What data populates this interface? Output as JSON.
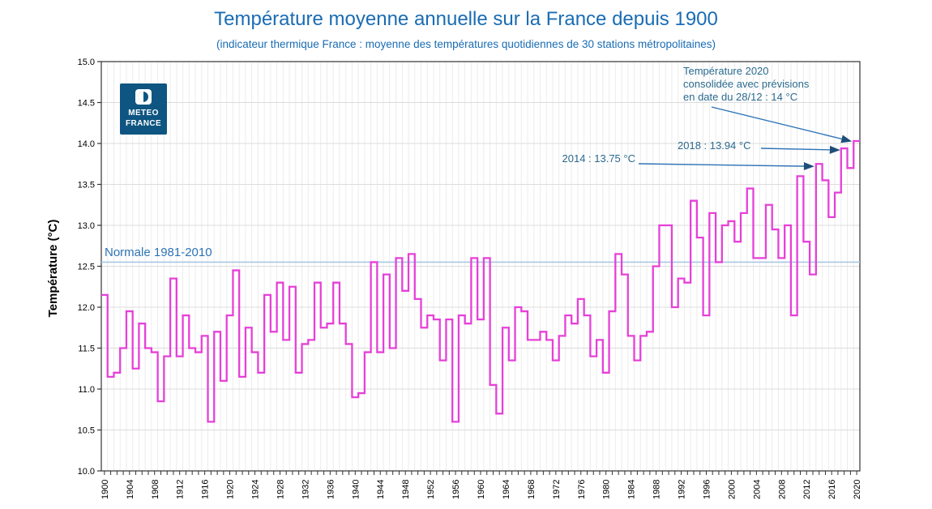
{
  "title": "Température moyenne annuelle sur la France depuis 1900",
  "subtitle": "(indicateur thermique France : moyenne des températures quotidiennes de 30 stations métropolitaines)",
  "logo": {
    "line1": "METEO",
    "line2": "FRANCE"
  },
  "colors": {
    "title": "#1a6cb3",
    "series": "#E640D8",
    "normal_line": "#A9C7E3",
    "normal_label": "#2E74B5",
    "annotation_text": "#2b6a8f",
    "arrow": "#1F4E79",
    "arrow_line": "#2E74B5",
    "logo_bg": "#0E5581",
    "axis": "#333333",
    "grid_v": "#ECECEC",
    "grid_h": "#DCDCDC"
  },
  "chart_data": {
    "type": "line",
    "subtype": "step",
    "ylabel": "Température (°C)",
    "ylim": [
      10.0,
      15.0
    ],
    "ytick_step": 0.5,
    "xtick_label_step": 4,
    "grid": true,
    "x": [
      1900,
      1901,
      1902,
      1903,
      1904,
      1905,
      1906,
      1907,
      1908,
      1909,
      1910,
      1911,
      1912,
      1913,
      1914,
      1915,
      1916,
      1917,
      1918,
      1919,
      1920,
      1921,
      1922,
      1923,
      1924,
      1925,
      1926,
      1927,
      1928,
      1929,
      1930,
      1931,
      1932,
      1933,
      1934,
      1935,
      1936,
      1937,
      1938,
      1939,
      1940,
      1941,
      1942,
      1943,
      1944,
      1945,
      1946,
      1947,
      1948,
      1949,
      1950,
      1951,
      1952,
      1953,
      1954,
      1955,
      1956,
      1957,
      1958,
      1959,
      1960,
      1961,
      1962,
      1963,
      1964,
      1965,
      1966,
      1967,
      1968,
      1969,
      1970,
      1971,
      1972,
      1973,
      1974,
      1975,
      1976,
      1977,
      1978,
      1979,
      1980,
      1981,
      1982,
      1983,
      1984,
      1985,
      1986,
      1987,
      1988,
      1989,
      1990,
      1991,
      1992,
      1993,
      1994,
      1995,
      1996,
      1997,
      1998,
      1999,
      2000,
      2001,
      2002,
      2003,
      2004,
      2005,
      2006,
      2007,
      2008,
      2009,
      2010,
      2011,
      2012,
      2013,
      2014,
      2015,
      2016,
      2017,
      2018,
      2019,
      2020
    ],
    "values": [
      12.15,
      11.15,
      11.2,
      11.5,
      11.95,
      11.25,
      11.8,
      11.5,
      11.45,
      10.85,
      11.4,
      12.35,
      11.4,
      11.9,
      11.5,
      11.45,
      11.65,
      10.6,
      11.7,
      11.1,
      11.9,
      12.45,
      11.15,
      11.75,
      11.45,
      11.2,
      12.15,
      11.7,
      12.3,
      11.6,
      12.25,
      11.2,
      11.55,
      11.6,
      12.3,
      11.75,
      11.8,
      12.3,
      11.8,
      11.55,
      10.9,
      10.95,
      11.45,
      12.55,
      11.45,
      12.4,
      11.5,
      12.6,
      12.2,
      12.65,
      12.1,
      11.75,
      11.9,
      11.85,
      11.35,
      11.85,
      10.6,
      11.9,
      11.8,
      12.6,
      11.85,
      12.6,
      11.05,
      10.7,
      11.75,
      11.35,
      12.0,
      11.95,
      11.6,
      11.6,
      11.7,
      11.6,
      11.35,
      11.65,
      11.9,
      11.8,
      12.1,
      11.9,
      11.4,
      11.6,
      11.2,
      11.95,
      12.65,
      12.4,
      11.65,
      11.35,
      11.65,
      11.7,
      12.5,
      13.0,
      13.0,
      12.0,
      12.35,
      12.3,
      13.3,
      12.85,
      11.9,
      13.15,
      12.55,
      13.0,
      13.05,
      12.8,
      13.15,
      13.45,
      12.6,
      12.6,
      13.25,
      12.95,
      12.6,
      13.0,
      11.9,
      13.6,
      12.8,
      12.4,
      13.75,
      13.55,
      13.1,
      13.4,
      13.94,
      13.7,
      14.03
    ],
    "normal_line": {
      "label": "Normale 1981-2010",
      "value": 12.55,
      "period": "1981-2010"
    },
    "annotations": [
      {
        "label": "2014 : 13.75 °C",
        "year": 2014,
        "value": 13.75
      },
      {
        "label": "2018 : 13.94 °C",
        "year": 2018,
        "value": 13.94
      },
      {
        "lines": [
          "Température 2020",
          "consolidée avec prévisions",
          "en date du 28/12 : 14 °C"
        ],
        "year": 2020,
        "value": 14
      }
    ]
  }
}
